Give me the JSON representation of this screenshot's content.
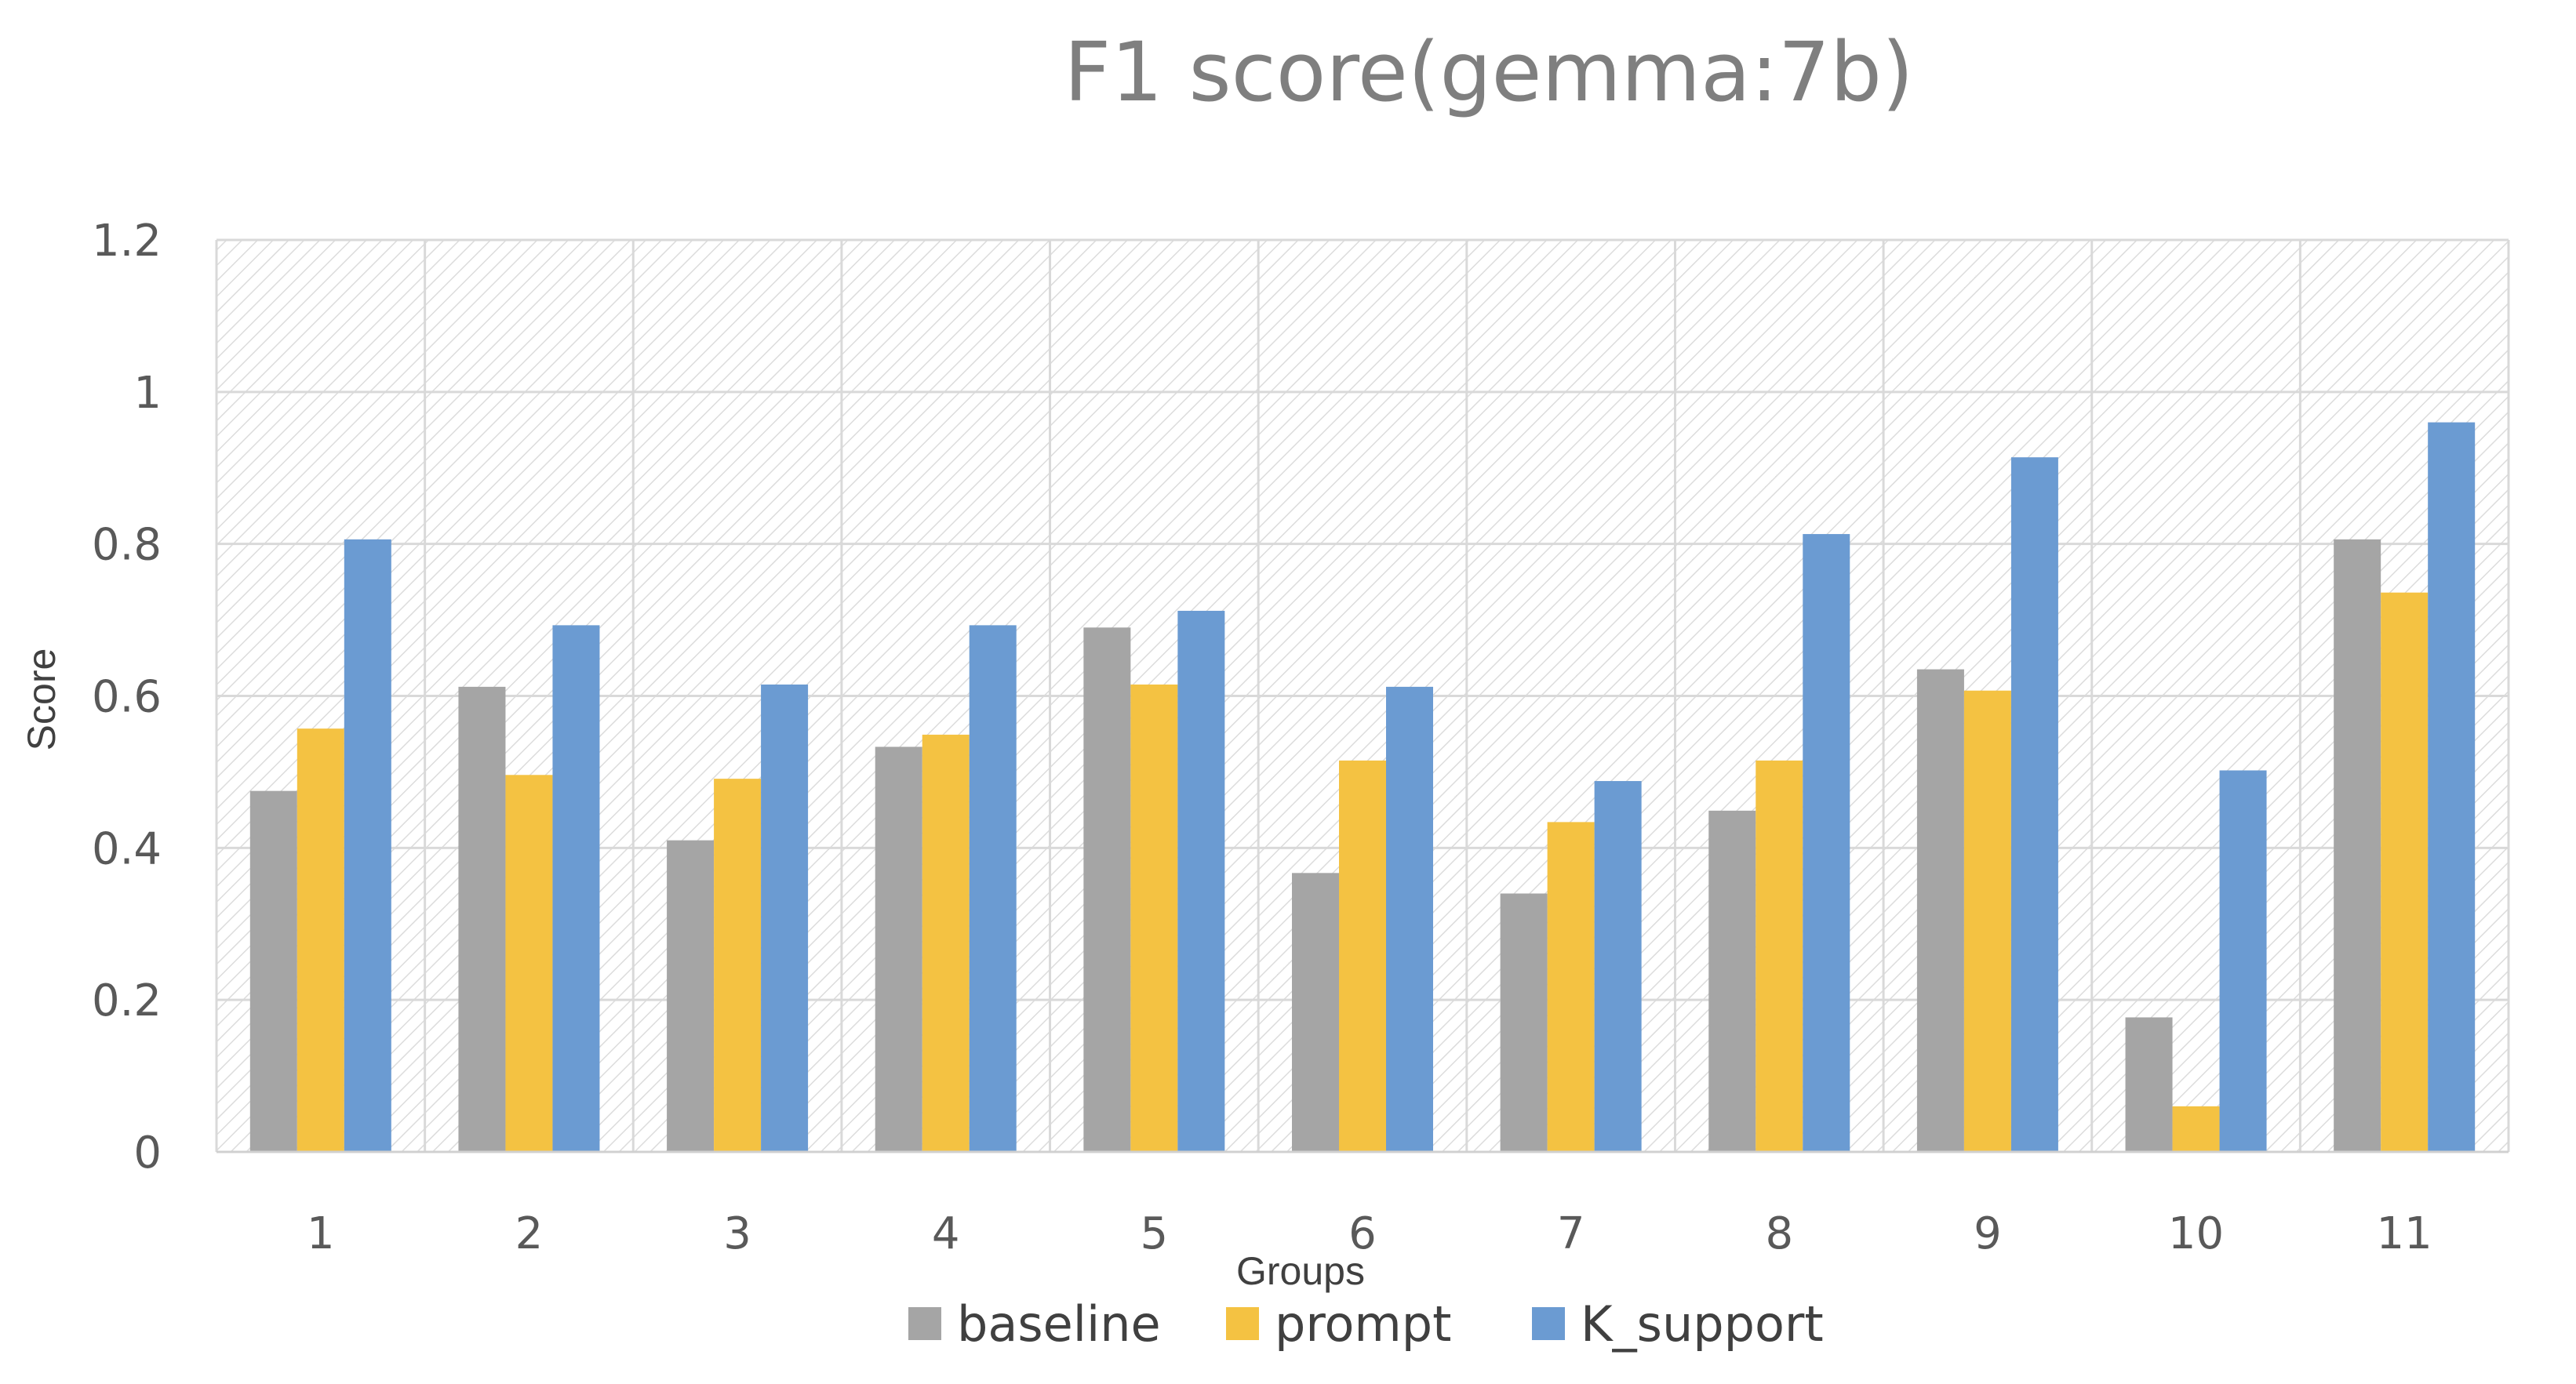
{
  "chart_data": {
    "type": "bar",
    "title": "F1 score(gemma:7b)",
    "xlabel": "Groups",
    "ylabel": "Score",
    "categories": [
      "1",
      "2",
      "3",
      "4",
      "5",
      "6",
      "7",
      "8",
      "9",
      "10",
      "11"
    ],
    "series": [
      {
        "name": "baseline",
        "color": "#a5a5a5",
        "values": [
          0.475,
          0.612,
          0.41,
          0.533,
          0.69,
          0.367,
          0.34,
          0.449,
          0.635,
          0.177,
          0.806
        ]
      },
      {
        "name": "prompt",
        "color": "#f4c242",
        "values": [
          0.557,
          0.496,
          0.491,
          0.549,
          0.615,
          0.515,
          0.434,
          0.515,
          0.607,
          0.06,
          0.736
        ]
      },
      {
        "name": "K_support",
        "color": "#6b9bd2",
        "values": [
          0.806,
          0.693,
          0.615,
          0.693,
          0.712,
          0.612,
          0.488,
          0.813,
          0.914,
          0.502,
          0.96
        ]
      }
    ],
    "yticks": [
      "0",
      "0.2",
      "0.4",
      "0.6",
      "0.8",
      "1",
      "1.2"
    ],
    "ylim": [
      0,
      1.2
    ],
    "grid": true,
    "legend_position": "bottom"
  }
}
